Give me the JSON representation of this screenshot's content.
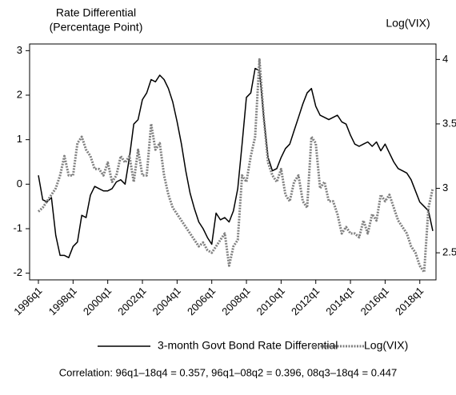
{
  "chart_data": {
    "type": "line",
    "ylabel_lines": [
      "Rate Differential",
      "(Percentage Point)"
    ],
    "y2label": "Log(VIX)",
    "note": "Correlation: 96q1–18q4 = 0.357, 96q1–08q2 = 0.396, 08q3–18q4 = 0.447",
    "categories": [
      "1996q1",
      null,
      null,
      null,
      null,
      null,
      null,
      null,
      "1998q1",
      null,
      null,
      null,
      null,
      null,
      null,
      null,
      "2000q1",
      null,
      null,
      null,
      null,
      null,
      null,
      null,
      "2002q1",
      null,
      null,
      null,
      null,
      null,
      null,
      null,
      "2004q1",
      null,
      null,
      null,
      null,
      null,
      null,
      null,
      "2006q1",
      null,
      null,
      null,
      null,
      null,
      null,
      null,
      "2008q1",
      null,
      null,
      null,
      null,
      null,
      null,
      null,
      "2010q1",
      null,
      null,
      null,
      null,
      null,
      null,
      null,
      "2012q1",
      null,
      null,
      null,
      null,
      null,
      null,
      null,
      "2014q1",
      null,
      null,
      null,
      null,
      null,
      null,
      null,
      "2016q1",
      null,
      null,
      null,
      null,
      null,
      null,
      null,
      "2018q1",
      null,
      null,
      null
    ],
    "series": [
      {
        "name": "3-month Govt Bond Rate Differential",
        "color": "#000000",
        "style": "solid",
        "axis": "y",
        "values": [
          0.2,
          -0.35,
          -0.4,
          -0.3,
          -1.15,
          -1.6,
          -1.6,
          -1.65,
          -1.4,
          -1.3,
          -0.7,
          -0.75,
          -0.25,
          -0.05,
          -0.1,
          -0.15,
          -0.15,
          -0.1,
          0.05,
          0.1,
          0.0,
          0.6,
          1.35,
          1.45,
          1.9,
          2.05,
          2.35,
          2.3,
          2.45,
          2.35,
          2.15,
          1.85,
          1.4,
          0.9,
          0.3,
          -0.2,
          -0.55,
          -0.85,
          -1.0,
          -1.2,
          -1.35,
          -0.65,
          -0.8,
          -0.75,
          -0.85,
          -0.6,
          -0.1,
          0.9,
          1.95,
          2.05,
          2.6,
          2.55,
          1.5,
          0.6,
          0.3,
          0.35,
          0.6,
          0.8,
          0.9,
          1.2,
          1.5,
          1.8,
          2.05,
          2.15,
          1.75,
          1.55,
          1.5,
          1.45,
          1.5,
          1.55,
          1.4,
          1.35,
          1.1,
          0.9,
          0.85,
          0.9,
          0.95,
          0.85,
          0.95,
          0.75,
          0.9,
          0.7,
          0.5,
          0.35,
          0.3,
          0.25,
          0.1,
          -0.15,
          -0.4,
          -0.5,
          -0.6,
          -1.05
        ]
      },
      {
        "name": "Log(VIX)",
        "color": "#808080",
        "style": "dotted",
        "axis": "y2",
        "values": [
          2.82,
          2.85,
          2.9,
          2.95,
          3.0,
          3.1,
          3.25,
          3.1,
          3.1,
          3.35,
          3.4,
          3.3,
          3.25,
          3.15,
          3.15,
          3.1,
          3.2,
          3.05,
          3.1,
          3.25,
          3.2,
          3.25,
          3.05,
          3.3,
          3.1,
          3.1,
          3.5,
          3.3,
          3.35,
          3.1,
          2.95,
          2.85,
          2.8,
          2.75,
          2.7,
          2.65,
          2.6,
          2.55,
          2.58,
          2.52,
          2.5,
          2.55,
          2.6,
          2.65,
          2.4,
          2.55,
          2.6,
          3.1,
          3.05,
          3.25,
          3.4,
          4.0,
          3.55,
          3.2,
          3.1,
          3.05,
          3.15,
          2.95,
          2.9,
          3.05,
          3.1,
          2.9,
          2.85,
          3.4,
          3.35,
          3.0,
          3.05,
          2.9,
          2.9,
          2.8,
          2.65,
          2.7,
          2.65,
          2.65,
          2.62,
          2.75,
          2.65,
          2.8,
          2.75,
          2.95,
          2.9,
          2.95,
          2.85,
          2.75,
          2.7,
          2.65,
          2.55,
          2.5,
          2.4,
          2.35,
          2.85,
          3.0
        ]
      }
    ],
    "ylim": [
      -2.15,
      3.15
    ],
    "yticks": [
      -2,
      -1,
      0,
      1,
      2,
      3
    ],
    "y2lim": [
      2.29,
      4.12
    ],
    "y2ticks": [
      2.5,
      3,
      3.5,
      4
    ],
    "grid": false,
    "legend": "bottom"
  }
}
